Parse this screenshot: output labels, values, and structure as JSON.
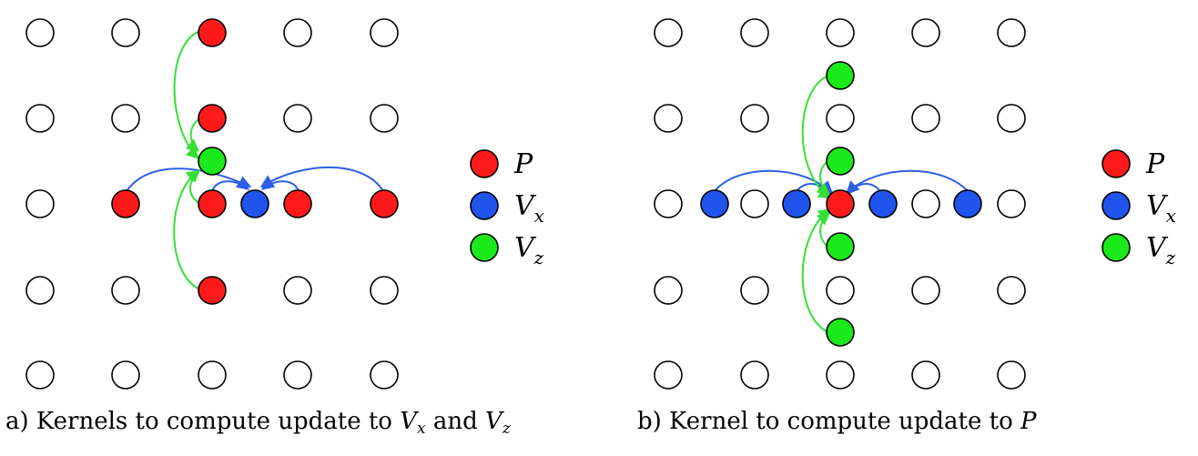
{
  "colors": {
    "P": "#ff1a1a",
    "Vx": "#1f55ee",
    "Vz": "#1aea1a",
    "empty": "#ffffff",
    "stroke": "#000000",
    "blue_arrow": "#2d5fe6",
    "green_arrow": "#35e035"
  },
  "legend_a": [
    {
      "color_key": "P",
      "symbol": "P",
      "sub": ""
    },
    {
      "color_key": "Vx",
      "symbol": "V",
      "sub": "x"
    },
    {
      "color_key": "Vz",
      "symbol": "V",
      "sub": "z"
    }
  ],
  "legend_b": [
    {
      "color_key": "P",
      "symbol": "P",
      "sub": ""
    },
    {
      "color_key": "Vx",
      "symbol": "V",
      "sub": "x"
    },
    {
      "color_key": "Vz",
      "symbol": "V",
      "sub": "z"
    }
  ],
  "caption_a": {
    "prefix": "a) Kernels to compute update to ",
    "v1": "V",
    "v1_sub": "x",
    "mid": " and ",
    "v2": "V",
    "v2_sub": "z"
  },
  "caption_b": {
    "prefix": "b) Kernel to compute update to ",
    "p": "P"
  }
}
